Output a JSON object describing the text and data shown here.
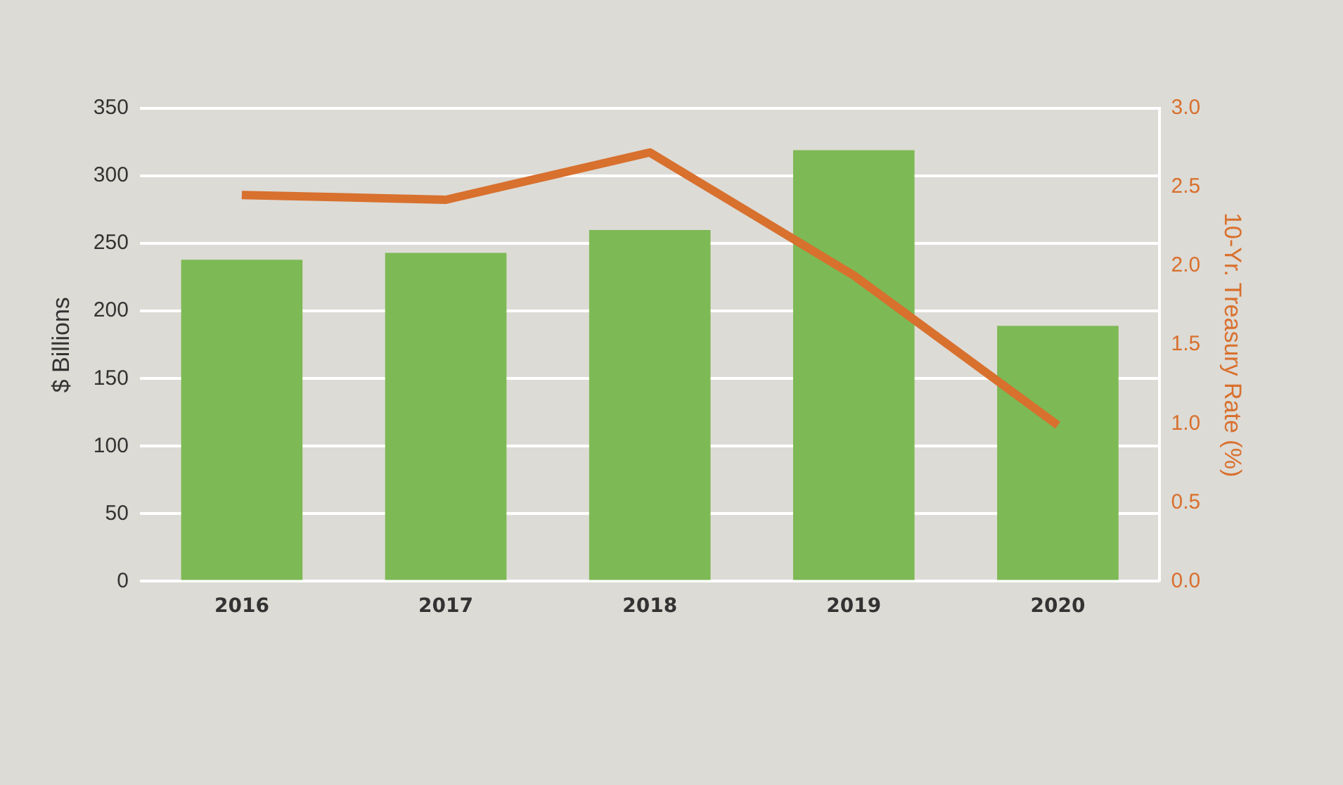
{
  "chart_data": {
    "type": "bar",
    "categories": [
      "2016",
      "2017",
      "2018",
      "2019",
      "2020"
    ],
    "ylabel": "$ Billions",
    "y2label": "10-Yr. Treasury Rate (%)",
    "series": [
      {
        "color": "#7db955",
        "values": [
          238,
          243,
          260,
          319,
          189
        ]
      },
      {
        "type": "line",
        "color": "#d8702e",
        "axis": "y2",
        "values": [
          2.45,
          2.42,
          2.72,
          1.94,
          0.99
        ]
      }
    ],
    "ylim": [
      0,
      350
    ],
    "yticks": [
      0,
      50,
      100,
      150,
      200,
      250,
      300,
      350
    ],
    "y2lim": [
      0,
      3
    ],
    "y2ticks": [
      {
        "value": 0,
        "label": "0.0"
      },
      {
        "value": 0.5,
        "label": "0.5"
      },
      {
        "value": 1,
        "label": "1.0"
      },
      {
        "value": 1.5,
        "label": "1.5"
      },
      {
        "value": 2,
        "label": "2.0"
      },
      {
        "value": 2.5,
        "label": "2.5"
      },
      {
        "value": 3,
        "label": "3.0"
      }
    ],
    "grid": "y",
    "marker": "none",
    "line_style": "solid",
    "legend": false
  }
}
